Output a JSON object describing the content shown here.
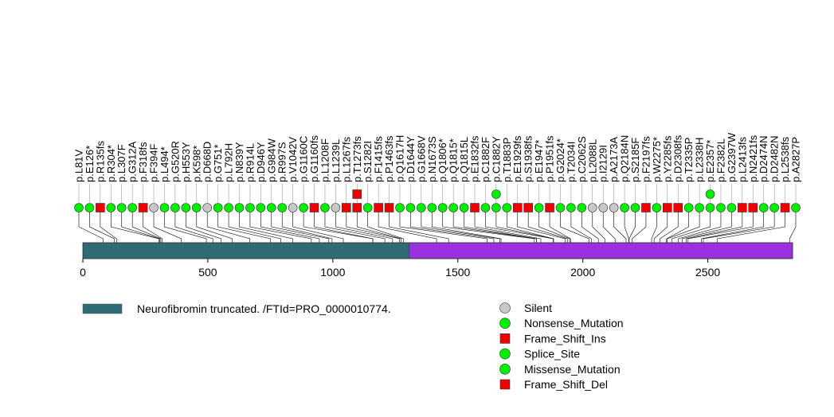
{
  "chart_data": {
    "type": "lollipop",
    "title": "",
    "xlabel": "",
    "ylabel": "",
    "xlim": [
      0,
      2839
    ],
    "x_ticks": [
      0,
      500,
      1000,
      1500,
      2000,
      2500
    ],
    "x_tick_labels": [
      "0",
      "500",
      "1000",
      "1500",
      "2000",
      "2500"
    ],
    "domains": [
      {
        "name": "Neurofibromin truncated. /FTId=PRO_0000010774.",
        "start": 1,
        "end": 1305,
        "color": "#2f6b75"
      },
      {
        "name": "",
        "start": 1306,
        "end": 2839,
        "color": "#9b30e0"
      }
    ],
    "legend_domain_label": "Neurofibromin truncated. /FTId=PRO_0000010774.",
    "mutation_types": [
      {
        "name": "Silent",
        "shape": "circle",
        "color": "#c8c8c8"
      },
      {
        "name": "Nonsense_Mutation",
        "shape": "circle",
        "color": "#00ee00"
      },
      {
        "name": "Frame_Shift_Ins",
        "shape": "square",
        "color": "#ee0000"
      },
      {
        "name": "Splice_Site",
        "shape": "circle",
        "color": "#00ee00"
      },
      {
        "name": "Missense_Mutation",
        "shape": "circle",
        "color": "#00ee00"
      },
      {
        "name": "Frame_Shift_Del",
        "shape": "square",
        "color": "#ee0000"
      }
    ],
    "mutations": [
      {
        "label": "p.L81V",
        "pos": 81,
        "type": "Missense_Mutation",
        "stack": 1
      },
      {
        "label": "p.E126*",
        "pos": 126,
        "type": "Nonsense_Mutation",
        "stack": 1
      },
      {
        "label": "p.R135fs",
        "pos": 135,
        "type": "Frame_Shift_Del",
        "stack": 1
      },
      {
        "label": "p.R304*",
        "pos": 304,
        "type": "Nonsense_Mutation",
        "stack": 1
      },
      {
        "label": "p.L307F",
        "pos": 307,
        "type": "Missense_Mutation",
        "stack": 1
      },
      {
        "label": "p.G312A",
        "pos": 312,
        "type": "Missense_Mutation",
        "stack": 1
      },
      {
        "label": "p.F318fs",
        "pos": 318,
        "type": "Frame_Shift_Del",
        "stack": 1
      },
      {
        "label": "p.F394F",
        "pos": 394,
        "type": "Silent",
        "stack": 1
      },
      {
        "label": "p.L494*",
        "pos": 494,
        "type": "Nonsense_Mutation",
        "stack": 1
      },
      {
        "label": "p.G520R",
        "pos": 520,
        "type": "Missense_Mutation",
        "stack": 1
      },
      {
        "label": "p.H553Y",
        "pos": 553,
        "type": "Missense_Mutation",
        "stack": 1
      },
      {
        "label": "p.K598*",
        "pos": 598,
        "type": "Nonsense_Mutation",
        "stack": 1
      },
      {
        "label": "p.D668D",
        "pos": 668,
        "type": "Silent",
        "stack": 1
      },
      {
        "label": "p.G751*",
        "pos": 751,
        "type": "Nonsense_Mutation",
        "stack": 1
      },
      {
        "label": "p.L792H",
        "pos": 792,
        "type": "Missense_Mutation",
        "stack": 1
      },
      {
        "label": "p.N839Y",
        "pos": 839,
        "type": "Missense_Mutation",
        "stack": 1
      },
      {
        "label": "p.R914L",
        "pos": 914,
        "type": "Missense_Mutation",
        "stack": 1
      },
      {
        "label": "p.D946Y",
        "pos": 946,
        "type": "Missense_Mutation",
        "stack": 1
      },
      {
        "label": "p.G984W",
        "pos": 984,
        "type": "Missense_Mutation",
        "stack": 1
      },
      {
        "label": "p.R997S",
        "pos": 997,
        "type": "Missense_Mutation",
        "stack": 1
      },
      {
        "label": "p.V1042V",
        "pos": 1042,
        "type": "Silent",
        "stack": 1
      },
      {
        "label": "p.G1160C",
        "pos": 1160,
        "type": "Missense_Mutation",
        "stack": 1
      },
      {
        "label": "p.G1160fs",
        "pos": 1160,
        "type": "Frame_Shift_Del",
        "stack": 1
      },
      {
        "label": "p.L1208F",
        "pos": 1208,
        "type": "Missense_Mutation",
        "stack": 1
      },
      {
        "label": "p.L1239L",
        "pos": 1239,
        "type": "Silent",
        "stack": 1
      },
      {
        "label": "p.L1267fs",
        "pos": 1267,
        "type": "Frame_Shift_Del",
        "stack": 1
      },
      {
        "label": "p.T1273fs",
        "pos": 1273,
        "type": "Frame_Shift_Del",
        "stack": 2
      },
      {
        "label": "p.S1282I",
        "pos": 1282,
        "type": "Missense_Mutation",
        "stack": 1
      },
      {
        "label": "p.F1415fs",
        "pos": 1415,
        "type": "Frame_Shift_Del",
        "stack": 1
      },
      {
        "label": "p.P1463fs",
        "pos": 1463,
        "type": "Frame_Shift_Del",
        "stack": 1
      },
      {
        "label": "p.Q1617H",
        "pos": 1617,
        "type": "Missense_Mutation",
        "stack": 1
      },
      {
        "label": "p.D1644Y",
        "pos": 1644,
        "type": "Missense_Mutation",
        "stack": 1
      },
      {
        "label": "p.G1668V",
        "pos": 1668,
        "type": "Missense_Mutation",
        "stack": 1
      },
      {
        "label": "p.N1673S",
        "pos": 1673,
        "type": "Missense_Mutation",
        "stack": 1
      },
      {
        "label": "p.Q1806*",
        "pos": 1806,
        "type": "Nonsense_Mutation",
        "stack": 1
      },
      {
        "label": "p.Q1815*",
        "pos": 1815,
        "type": "Nonsense_Mutation",
        "stack": 1
      },
      {
        "label": "p.Q1815L",
        "pos": 1815,
        "type": "Missense_Mutation",
        "stack": 1
      },
      {
        "label": "p.E1832fs",
        "pos": 1832,
        "type": "Frame_Shift_Del",
        "stack": 1
      },
      {
        "label": "p.C1882F",
        "pos": 1882,
        "type": "Missense_Mutation",
        "stack": 1
      },
      {
        "label": "p.C1882Y",
        "pos": 1882,
        "type": "Missense_Mutation",
        "stack": 2
      },
      {
        "label": "p.T1883P",
        "pos": 1883,
        "type": "Missense_Mutation",
        "stack": 1
      },
      {
        "label": "p.E1929fs",
        "pos": 1929,
        "type": "Frame_Shift_Del",
        "stack": 1
      },
      {
        "label": "p.S1938fs",
        "pos": 1938,
        "type": "Frame_Shift_Del",
        "stack": 1
      },
      {
        "label": "p.E1947*",
        "pos": 1947,
        "type": "Nonsense_Mutation",
        "stack": 1
      },
      {
        "label": "p.P1951fs",
        "pos": 1951,
        "type": "Frame_Shift_Del",
        "stack": 1
      },
      {
        "label": "p.G2024*",
        "pos": 2024,
        "type": "Nonsense_Mutation",
        "stack": 1
      },
      {
        "label": "p.T2034I",
        "pos": 2034,
        "type": "Missense_Mutation",
        "stack": 1
      },
      {
        "label": "p.C2062S",
        "pos": 2062,
        "type": "Missense_Mutation",
        "stack": 1
      },
      {
        "label": "p.L2088L",
        "pos": 2088,
        "type": "Silent",
        "stack": 1
      },
      {
        "label": "p.I2129I",
        "pos": 2129,
        "type": "Silent",
        "stack": 1
      },
      {
        "label": "p.A2173A",
        "pos": 2173,
        "type": "Silent",
        "stack": 1
      },
      {
        "label": "p.Q2184N",
        "pos": 2184,
        "type": "Missense_Mutation",
        "stack": 1
      },
      {
        "label": "p.S2185F",
        "pos": 2185,
        "type": "Missense_Mutation",
        "stack": 1
      },
      {
        "label": "p.F2197fs",
        "pos": 2197,
        "type": "Frame_Shift_Del",
        "stack": 1
      },
      {
        "label": "p.W2275*",
        "pos": 2275,
        "type": "Nonsense_Mutation",
        "stack": 1
      },
      {
        "label": "p.Y2285fs",
        "pos": 2285,
        "type": "Frame_Shift_Del",
        "stack": 1
      },
      {
        "label": "p.D2308fs",
        "pos": 2308,
        "type": "Frame_Shift_Del",
        "stack": 1
      },
      {
        "label": "p.T2335P",
        "pos": 2335,
        "type": "Missense_Mutation",
        "stack": 1
      },
      {
        "label": "p.L2338H",
        "pos": 2338,
        "type": "Missense_Mutation",
        "stack": 1
      },
      {
        "label": "p.E2357*",
        "pos": 2357,
        "type": "Nonsense_Mutation",
        "stack": 2
      },
      {
        "label": "p.F2382L",
        "pos": 2382,
        "type": "Missense_Mutation",
        "stack": 1
      },
      {
        "label": "p.G2397W",
        "pos": 2397,
        "type": "Missense_Mutation",
        "stack": 1
      },
      {
        "label": "p.L2413fs",
        "pos": 2413,
        "type": "Frame_Shift_Del",
        "stack": 1
      },
      {
        "label": "p.N2421fs",
        "pos": 2421,
        "type": "Frame_Shift_Del",
        "stack": 1
      },
      {
        "label": "p.D2474N",
        "pos": 2474,
        "type": "Missense_Mutation",
        "stack": 1
      },
      {
        "label": "p.D2482N",
        "pos": 2482,
        "type": "Missense_Mutation",
        "stack": 1
      },
      {
        "label": "p.L2538fs",
        "pos": 2538,
        "type": "Frame_Shift_Del",
        "stack": 1
      },
      {
        "label": "p.A2827P",
        "pos": 2827,
        "type": "Missense_Mutation",
        "stack": 1
      }
    ]
  }
}
